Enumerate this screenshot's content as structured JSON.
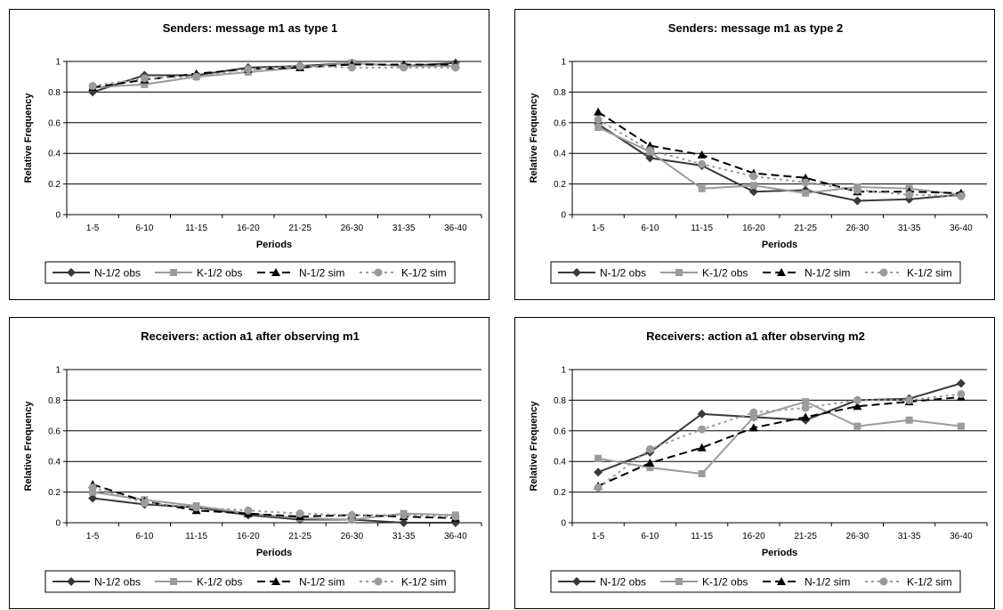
{
  "chart_data": [
    {
      "type": "line",
      "title": "Senders: message m1 as type 1",
      "xlabel": "Periods",
      "ylabel": "Relative Frequency",
      "categories": [
        "1-5",
        "6-10",
        "11-15",
        "16-20",
        "21-25",
        "26-30",
        "31-35",
        "36-40"
      ],
      "ylim": [
        0,
        1
      ],
      "yticks": [
        "0",
        "0.2",
        "0.4",
        "0.6",
        "0.8",
        "1"
      ],
      "grid": true,
      "legend": "bottom",
      "series": [
        {
          "name": "N-1/2 obs",
          "color": "#3a3a3a",
          "dash": "solid",
          "marker": "diamond",
          "values": [
            0.8,
            0.91,
            0.91,
            0.96,
            0.97,
            0.99,
            0.97,
            0.99
          ]
        },
        {
          "name": "K-1/2 obs",
          "color": "#9b9b9b",
          "dash": "solid",
          "marker": "square",
          "values": [
            0.83,
            0.85,
            0.9,
            0.93,
            0.96,
            0.99,
            0.97,
            0.97
          ]
        },
        {
          "name": "N-1/2 sim",
          "color": "#000000",
          "dash": "dashed",
          "marker": "triangle",
          "values": [
            0.83,
            0.88,
            0.92,
            0.95,
            0.96,
            0.98,
            0.98,
            0.98
          ]
        },
        {
          "name": "K-1/2 sim",
          "color": "#9b9b9b",
          "dash": "dotted",
          "marker": "circle",
          "values": [
            0.84,
            0.89,
            0.9,
            0.95,
            0.97,
            0.96,
            0.96,
            0.96
          ]
        }
      ]
    },
    {
      "type": "line",
      "title": "Senders: message m1 as type 2",
      "xlabel": "Periods",
      "ylabel": "Relative Frequency",
      "categories": [
        "1-5",
        "6-10",
        "11-15",
        "16-20",
        "21-25",
        "26-30",
        "31-35",
        "36-40"
      ],
      "ylim": [
        0,
        1
      ],
      "yticks": [
        "0",
        "0.2",
        "0.4",
        "0.6",
        "0.8",
        "1"
      ],
      "grid": true,
      "legend": "bottom",
      "series": [
        {
          "name": "N-1/2 obs",
          "color": "#3a3a3a",
          "dash": "solid",
          "marker": "diamond",
          "values": [
            0.59,
            0.37,
            0.32,
            0.15,
            0.16,
            0.09,
            0.1,
            0.13
          ]
        },
        {
          "name": "K-1/2 obs",
          "color": "#9b9b9b",
          "dash": "solid",
          "marker": "square",
          "values": [
            0.57,
            0.41,
            0.17,
            0.19,
            0.14,
            0.18,
            0.17,
            0.13
          ]
        },
        {
          "name": "N-1/2 sim",
          "color": "#000000",
          "dash": "dashed",
          "marker": "triangle",
          "values": [
            0.67,
            0.45,
            0.39,
            0.27,
            0.24,
            0.15,
            0.15,
            0.14
          ]
        },
        {
          "name": "K-1/2 sim",
          "color": "#9b9b9b",
          "dash": "dotted",
          "marker": "circle",
          "values": [
            0.62,
            0.42,
            0.33,
            0.25,
            0.21,
            0.16,
            0.13,
            0.12
          ]
        }
      ]
    },
    {
      "type": "line",
      "title": "Receivers: action a1 after observing m1",
      "xlabel": "Periods",
      "ylabel": "Relative Frequency",
      "categories": [
        "1-5",
        "6-10",
        "11-15",
        "16-20",
        "21-25",
        "26-30",
        "31-35",
        "36-40"
      ],
      "ylim": [
        0,
        1
      ],
      "yticks": [
        "0",
        "0.2",
        "0.4",
        "0.6",
        "0.8",
        "1"
      ],
      "grid": true,
      "legend": "bottom",
      "series": [
        {
          "name": "N-1/2 obs",
          "color": "#3a3a3a",
          "dash": "solid",
          "marker": "diamond",
          "values": [
            0.16,
            0.12,
            0.1,
            0.05,
            0.02,
            0.02,
            0.0,
            0.0
          ]
        },
        {
          "name": "K-1/2 obs",
          "color": "#9b9b9b",
          "dash": "solid",
          "marker": "square",
          "values": [
            0.2,
            0.15,
            0.11,
            0.06,
            0.03,
            0.02,
            0.06,
            0.05
          ]
        },
        {
          "name": "N-1/2 sim",
          "color": "#000000",
          "dash": "dashed",
          "marker": "triangle",
          "values": [
            0.25,
            0.14,
            0.08,
            0.06,
            0.04,
            0.05,
            0.04,
            0.03
          ]
        },
        {
          "name": "K-1/2 sim",
          "color": "#9b9b9b",
          "dash": "dotted",
          "marker": "circle",
          "values": [
            0.23,
            0.13,
            0.1,
            0.08,
            0.06,
            0.05,
            0.05,
            0.04
          ]
        }
      ]
    },
    {
      "type": "line",
      "title": "Receivers: action a1 after observing m2",
      "xlabel": "Periods",
      "ylabel": "Relative Frequency",
      "categories": [
        "1-5",
        "6-10",
        "11-15",
        "16-20",
        "21-25",
        "26-30",
        "31-35",
        "36-40"
      ],
      "ylim": [
        0,
        1
      ],
      "yticks": [
        "0",
        "0.2",
        "0.4",
        "0.6",
        "0.8",
        "1"
      ],
      "grid": true,
      "legend": "bottom",
      "series": [
        {
          "name": "N-1/2 obs",
          "color": "#3a3a3a",
          "dash": "solid",
          "marker": "diamond",
          "values": [
            0.33,
            0.46,
            0.71,
            0.69,
            0.67,
            0.8,
            0.81,
            0.91
          ]
        },
        {
          "name": "K-1/2 obs",
          "color": "#9b9b9b",
          "dash": "solid",
          "marker": "square",
          "values": [
            0.42,
            0.36,
            0.32,
            0.69,
            0.79,
            0.63,
            0.67,
            0.63
          ]
        },
        {
          "name": "N-1/2 sim",
          "color": "#000000",
          "dash": "dashed",
          "marker": "triangle",
          "values": [
            0.24,
            0.39,
            0.49,
            0.62,
            0.69,
            0.76,
            0.79,
            0.82
          ]
        },
        {
          "name": "K-1/2 sim",
          "color": "#9b9b9b",
          "dash": "dotted",
          "marker": "circle",
          "values": [
            0.23,
            0.48,
            0.61,
            0.72,
            0.75,
            0.8,
            0.8,
            0.84
          ]
        }
      ]
    }
  ]
}
